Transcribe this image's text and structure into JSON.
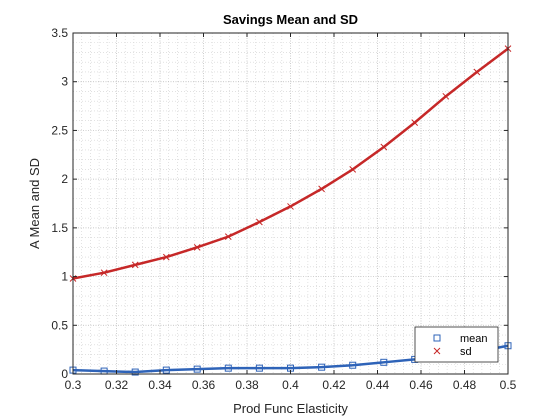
{
  "chart_data": {
    "type": "line",
    "title": "Savings Mean and SD",
    "xlabel": "Prod Func Elasticity",
    "ylabel": "A Mean and SD",
    "xlim": [
      0.3,
      0.5
    ],
    "ylim": [
      0,
      3.5
    ],
    "x_ticks": [
      "0.3",
      "0.32",
      "0.34",
      "0.36",
      "0.38",
      "0.4",
      "0.42",
      "0.44",
      "0.46",
      "0.48",
      "0.5"
    ],
    "y_ticks": [
      "0",
      "0.5",
      "1",
      "1.5",
      "2",
      "2.5",
      "3",
      "3.5"
    ],
    "grid": true,
    "minor_grid": true,
    "legend_position": "bottom-right",
    "x": [
      0.3,
      0.3143,
      0.3286,
      0.3429,
      0.3571,
      0.3714,
      0.3857,
      0.4,
      0.4143,
      0.4286,
      0.4429,
      0.4571,
      0.4714,
      0.4857,
      0.5
    ],
    "series": [
      {
        "name": "mean",
        "color": "#2e63b8",
        "marker": "square",
        "values": [
          0.04,
          0.03,
          0.02,
          0.04,
          0.05,
          0.06,
          0.06,
          0.06,
          0.07,
          0.09,
          0.12,
          0.15,
          0.19,
          0.23,
          0.29
        ]
      },
      {
        "name": "sd",
        "color": "#c62828",
        "marker": "x",
        "values": [
          0.98,
          1.04,
          1.12,
          1.2,
          1.3,
          1.41,
          1.56,
          1.72,
          1.9,
          2.1,
          2.33,
          2.58,
          2.85,
          3.1,
          3.34
        ]
      }
    ]
  }
}
